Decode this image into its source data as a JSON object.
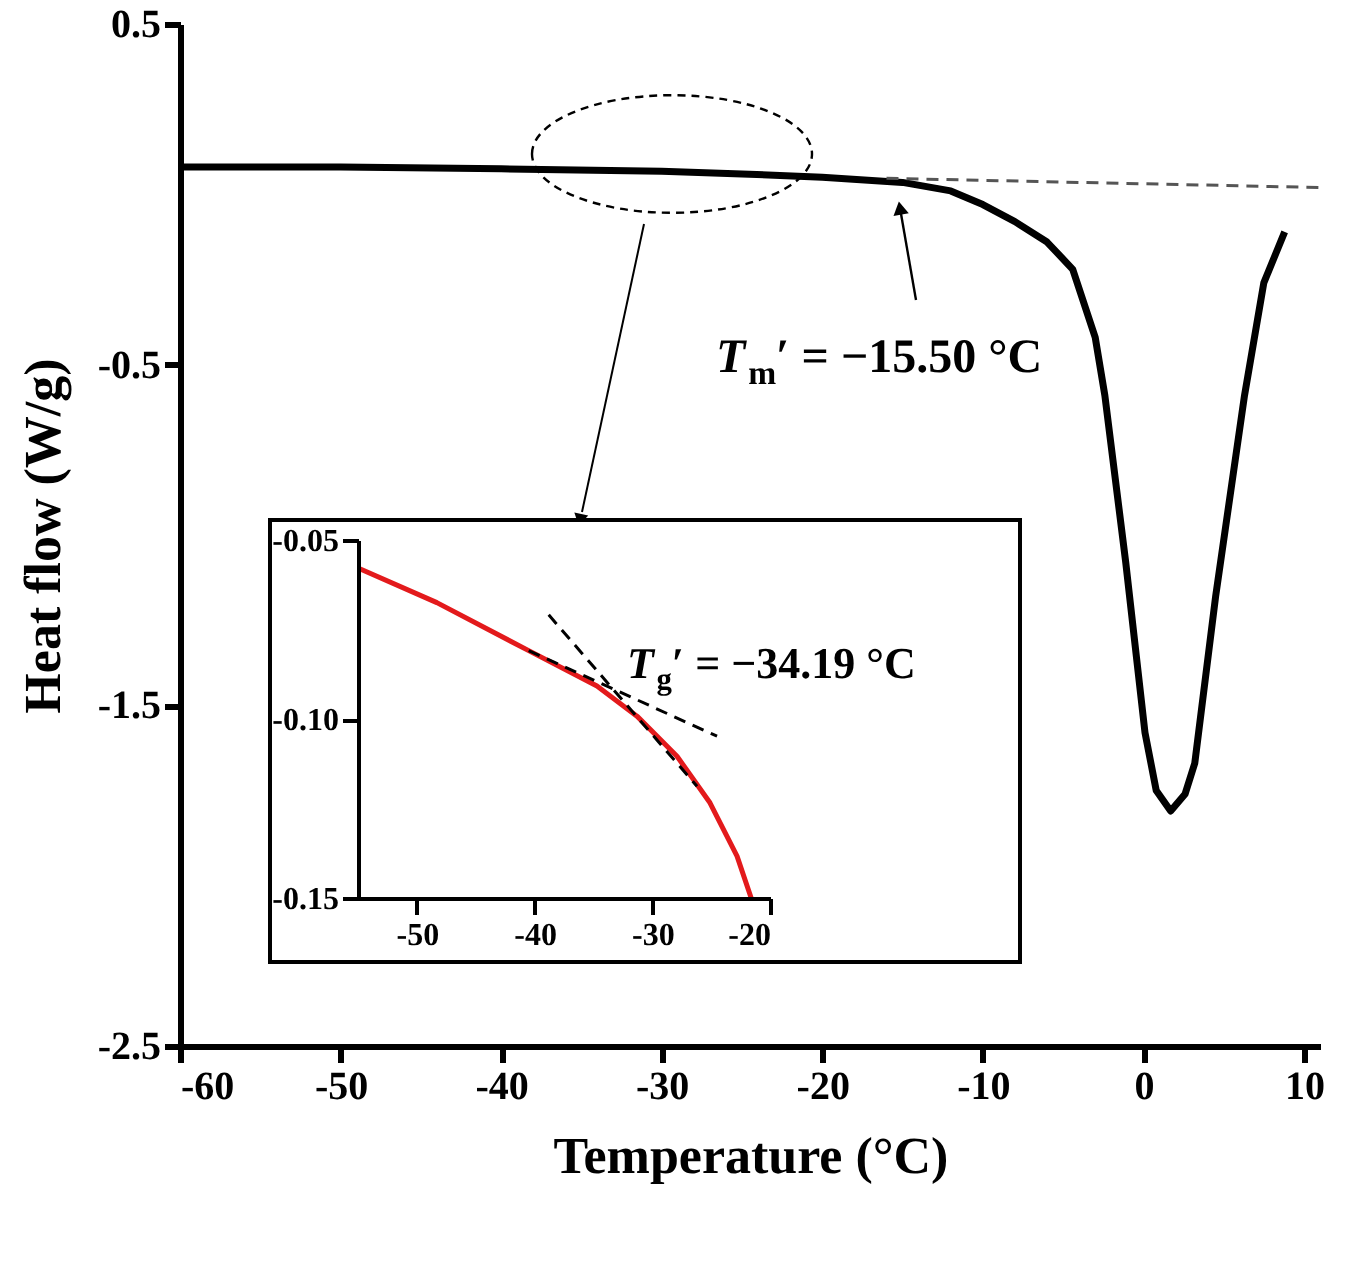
{
  "chart_data": [
    {
      "type": "line",
      "xlabel": "Temperature (°C)",
      "ylabel": "Heat flow (W/g)",
      "xlim": [
        -60,
        11
      ],
      "ylim": [
        -2.5,
        0.5
      ],
      "xticks": [
        -60,
        -50,
        -40,
        -30,
        -20,
        -10,
        0,
        10
      ],
      "yticks": [
        0.5,
        -0.5,
        -1.5,
        -2.5
      ],
      "grid": false,
      "series": [
        {
          "color": "#000000",
          "line_style": "solid",
          "x": [
            -60,
            -50,
            -40,
            -30,
            -25,
            -20,
            -15,
            -12,
            -10,
            -8,
            -6,
            -4.4,
            -3,
            -2.4,
            -1.1,
            0.1,
            0.8,
            1.7,
            2.6,
            3.2,
            4.5,
            6.3,
            7.5,
            8.8
          ],
          "values": [
            0.08,
            0.08,
            0.075,
            0.068,
            0.06,
            0.05,
            0.035,
            0.01,
            -0.03,
            -0.08,
            -0.14,
            -0.22,
            -0.42,
            -0.59,
            -1.08,
            -1.58,
            -1.75,
            -1.81,
            -1.76,
            -1.67,
            -1.18,
            -0.59,
            -0.26,
            -0.11
          ]
        },
        {
          "color": "#555555",
          "line_style": "dashed",
          "x": [
            -16,
            11
          ],
          "values": [
            0.047,
            0.02
          ]
        }
      ],
      "annotations": [
        "T$_{m}$′ = −15.50 °C"
      ]
    },
    {
      "type": "line",
      "xlim": [
        -55,
        -20
      ],
      "ylim": [
        -0.15,
        -0.05
      ],
      "xticks": [
        -50,
        -40,
        -30,
        -20
      ],
      "yticks": [
        {
          "value": -0.05,
          "label": "-0.05"
        },
        {
          "value": -0.1,
          "label": "-0.10"
        },
        {
          "value": -0.15,
          "label": "-0.15"
        }
      ],
      "grid": false,
      "series": [
        {
          "color": "#e31a1c",
          "line_style": "solid",
          "x": [
            -55,
            -48.3,
            -40.5,
            -34.7,
            -31.3,
            -27.9,
            -25.1,
            -22.8,
            -21.6
          ],
          "values": [
            -0.0578,
            -0.0675,
            -0.0809,
            -0.0908,
            -0.0992,
            -0.1104,
            -0.1234,
            -0.1383,
            -0.15
          ]
        },
        {
          "color": "#000000",
          "line_style": "dashed",
          "x": [
            -40.5,
            -24.5
          ],
          "values": [
            -0.0809,
            -0.1048
          ]
        },
        {
          "color": "#000000",
          "line_style": "dashed",
          "x": [
            -38.8,
            -26.2
          ],
          "values": [
            -0.0709,
            -0.1188
          ]
        }
      ],
      "annotations": [
        {
          "text": "T$_{g}$′ = −34.19 °C",
          "x": -34.19,
          "y": -0.093
        }
      ]
    }
  ]
}
